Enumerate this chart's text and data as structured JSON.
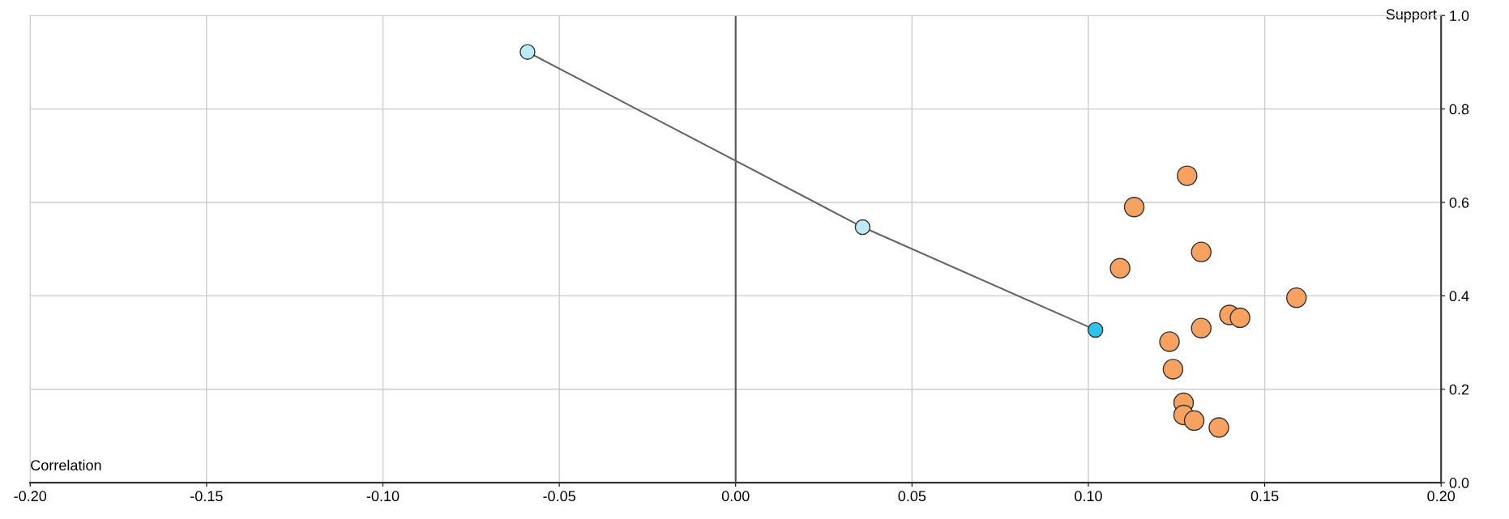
{
  "chart_data": {
    "type": "scatter",
    "xlabel": "Correlation",
    "ylabel": "Support",
    "xlim": [
      -0.2,
      0.2
    ],
    "ylim": [
      0,
      1.0
    ],
    "xticks": [
      {
        "value": -0.2,
        "label": "-0.20"
      },
      {
        "value": -0.15,
        "label": "-0.15"
      },
      {
        "value": -0.1,
        "label": "-0.10"
      },
      {
        "value": -0.05,
        "label": "-0.05"
      },
      {
        "value": 0,
        "label": "0.00"
      },
      {
        "value": 0.05,
        "label": "0.05"
      },
      {
        "value": 0.1,
        "label": "0.10"
      },
      {
        "value": 0.15,
        "label": "0.15"
      },
      {
        "value": 0.2,
        "label": "0.20"
      }
    ],
    "yticks": [
      {
        "value": 0,
        "label": "0.0"
      },
      {
        "value": 0.2,
        "label": "0.2"
      },
      {
        "value": 0.4,
        "label": "0.4"
      },
      {
        "value": 0.6,
        "label": "0.6"
      },
      {
        "value": 0.8,
        "label": "0.8"
      },
      {
        "value": 1.0,
        "label": "1.0"
      }
    ],
    "grid": true,
    "marker": "circle",
    "ref_lines": [
      {
        "axis": "x",
        "value": 0,
        "color": "#555555"
      }
    ],
    "series": [
      {
        "type": "line",
        "color": "#666666",
        "x": [
          -0.059,
          0.036,
          0.102
        ],
        "values": [
          0.922,
          0.547,
          0.327
        ],
        "colors": [
          "#bdeaf7",
          "#bdeaf7",
          "#2cc4ec"
        ]
      },
      {
        "color": "#f7a261",
        "x": [
          0.128,
          0.113,
          0.132,
          0.109,
          0.159,
          0.14,
          0.143,
          0.132,
          0.123,
          0.124,
          0.127,
          0.127,
          0.13,
          0.137
        ],
        "values": [
          0.657,
          0.59,
          0.494,
          0.459,
          0.396,
          0.359,
          0.353,
          0.331,
          0.302,
          0.243,
          0.171,
          0.145,
          0.133,
          0.118
        ]
      }
    ]
  }
}
